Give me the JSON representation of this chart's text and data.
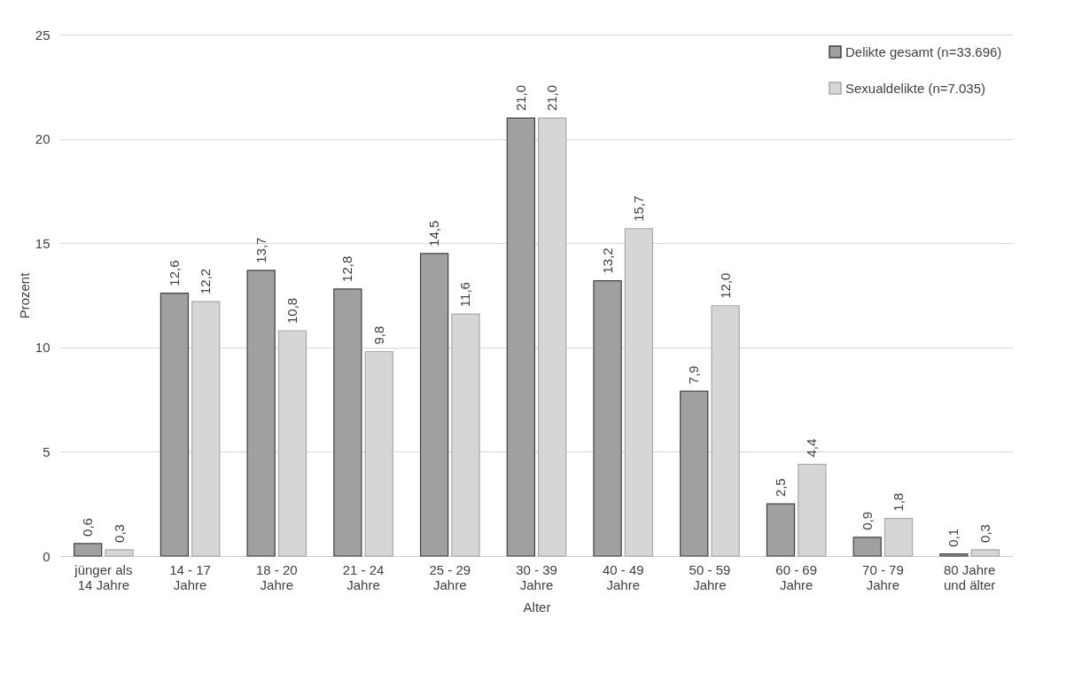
{
  "chart_data": {
    "type": "bar",
    "xlabel": "Alter",
    "ylabel": "Prozent",
    "categories": [
      "jünger als 14 Jahre",
      "14 - 17 Jahre",
      "18 - 20 Jahre",
      "21 - 24 Jahre",
      "25 - 29 Jahre",
      "30 - 39 Jahre",
      "40 - 49 Jahre",
      "50 - 59 Jahre",
      "60 - 69 Jahre",
      "70 - 79 Jahre",
      "80 Jahre und älter"
    ],
    "series": [
      {
        "name": "Delikte gesamt (n=33.696)",
        "color": "#a0a0a0",
        "values": [
          0.6,
          12.6,
          13.7,
          12.8,
          14.5,
          21.0,
          13.2,
          7.9,
          2.5,
          0.9,
          0.1
        ],
        "value_labels": [
          "0,6",
          "12,6",
          "13,7",
          "12,8",
          "14,5",
          "21,0",
          "13,2",
          "7,9",
          "2,5",
          "0,9",
          "0,1"
        ]
      },
      {
        "name": "Sexualdelikte (n=7.035)",
        "color": "#d6d6d6",
        "values": [
          0.3,
          12.2,
          10.8,
          9.8,
          11.6,
          21.0,
          15.7,
          12.0,
          4.4,
          1.8,
          0.3
        ],
        "value_labels": [
          "0,3",
          "12,2",
          "10,8",
          "9,8",
          "11,6",
          "21,0",
          "15,7",
          "12,0",
          "4,4",
          "1,8",
          "0,3"
        ]
      }
    ],
    "ylim": [
      0,
      25
    ],
    "yticks": [
      0,
      5,
      10,
      15,
      20,
      25
    ],
    "grid": "y",
    "legend": "top right"
  }
}
